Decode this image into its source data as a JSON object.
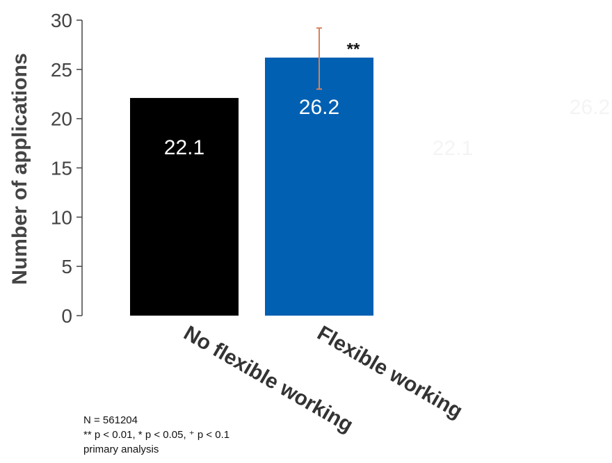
{
  "chart_data": {
    "type": "bar",
    "categories": [
      "No flexible working",
      "Flexible working"
    ],
    "values": [
      22.1,
      26.2
    ],
    "value_labels": [
      "22.1",
      "26.2"
    ],
    "error_bars": [
      null,
      {
        "low": 23.0,
        "high": 29.2
      }
    ],
    "significance": [
      null,
      "**"
    ],
    "ylabel": "Number of applications",
    "xlabel": "",
    "ylim": [
      0,
      30
    ],
    "yticks": [
      0,
      5,
      10,
      15,
      20,
      25,
      30
    ],
    "grid": false,
    "colors": {
      "bars": [
        "#000000",
        "#0160b2"
      ],
      "error_bar": "#d9805a",
      "axis": "#444444"
    },
    "faded_duplicate_labels": [
      "22.1",
      "26.2"
    ]
  },
  "footnotes": {
    "n": "N = 561204",
    "significance_key": "** p < 0.01, * p < 0.05, ⁺ p < 0.1",
    "analysis": "primary analysis"
  }
}
